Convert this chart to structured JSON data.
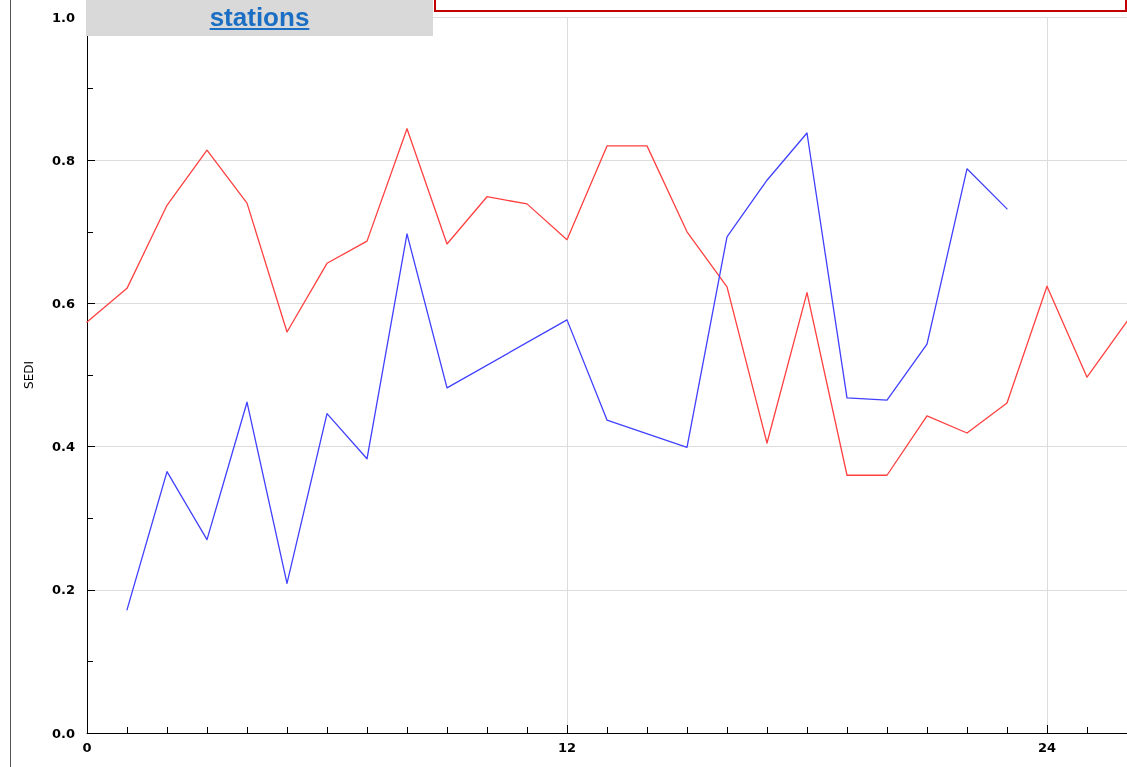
{
  "chart_data": {
    "type": "line",
    "ylabel": "SEDI",
    "annotations": [
      "stations"
    ],
    "xlim": [
      0,
      26
    ],
    "xticks": [
      0,
      12,
      24
    ],
    "ylim": [
      0,
      1
    ],
    "yticks": [
      {
        "value": 0,
        "label": "0.0"
      },
      {
        "value": 0.2,
        "label": "0.2"
      },
      {
        "value": 0.4,
        "label": "0.4"
      },
      {
        "value": 0.6,
        "label": "0.6"
      },
      {
        "value": 0.8,
        "label": "0.8"
      },
      {
        "value": 1,
        "label": "1.0"
      }
    ],
    "grid": true,
    "marker": "none",
    "line_style": "solid",
    "series": [
      {
        "color": "#ff4040",
        "x": [
          0,
          1,
          2,
          3,
          4,
          5,
          6,
          7,
          8,
          9,
          10,
          11,
          12,
          13,
          14,
          15,
          16,
          17,
          18,
          19,
          20,
          21,
          22,
          23,
          24,
          25,
          26
        ],
        "values": [
          0.574,
          0.621,
          0.737,
          0.814,
          0.74,
          0.56,
          0.656,
          0.687,
          0.844,
          0.683,
          0.749,
          0.739,
          0.689,
          0.82,
          0.82,
          0.7,
          0.623,
          0.405,
          0.615,
          0.36,
          0.36,
          0.443,
          0.419,
          0.461,
          0.624,
          0.497,
          0.575
        ]
      },
      {
        "color": "#4040ff",
        "x": [
          1,
          2,
          3,
          4,
          5,
          6,
          7,
          8,
          9,
          12,
          13,
          15,
          16,
          17,
          18,
          19,
          20,
          21,
          22,
          23
        ],
        "values": [
          0.172,
          0.365,
          0.27,
          0.462,
          0.209,
          0.446,
          0.383,
          0.697,
          0.482,
          0.577,
          0.437,
          0.399,
          0.693,
          0.772,
          0.838,
          0.468,
          0.465,
          0.543,
          0.788,
          0.732
        ]
      }
    ]
  }
}
